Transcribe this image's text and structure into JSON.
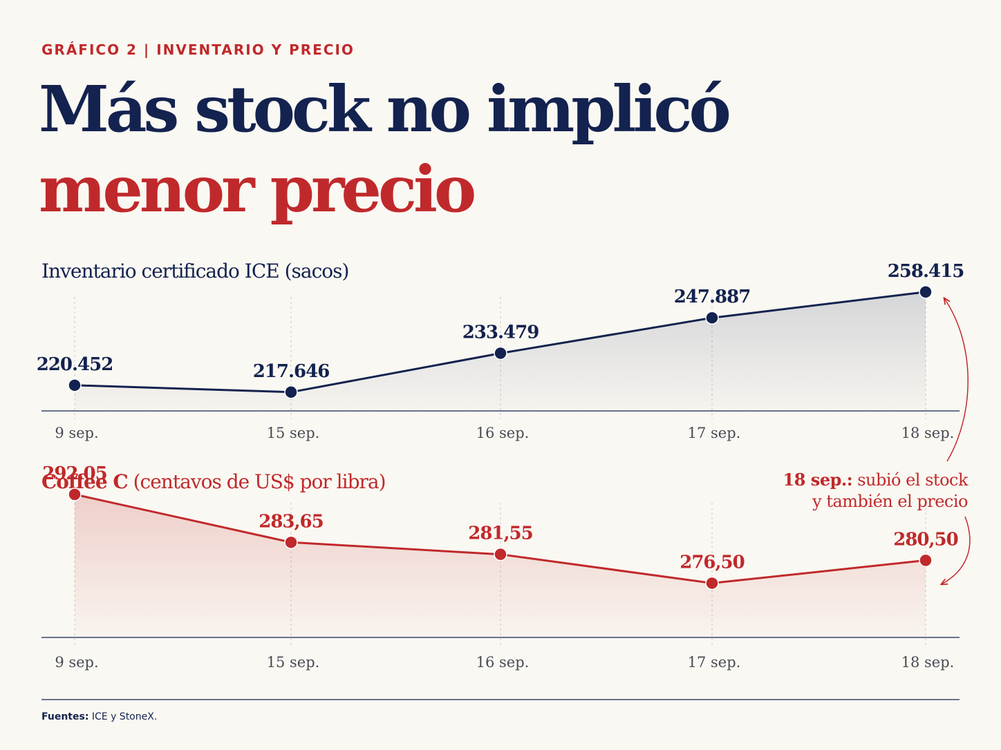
{
  "kicker": "GRÁFICO 2 | INVENTARIO Y PRECIO",
  "headline": {
    "line1": "Más stock no implicó",
    "line2": "menor precio"
  },
  "colors": {
    "navy": "#13224f",
    "red": "#c0292b",
    "background": "#faf8f2"
  },
  "chart_data": [
    {
      "type": "line",
      "title": "Inventario certificado ICE (sacos)",
      "categories": [
        "9 sep.",
        "15 sep.",
        "16 sep.",
        "17 sep.",
        "18 sep."
      ],
      "values": [
        220452,
        217646,
        233479,
        247887,
        258415
      ],
      "labels": [
        "220.452",
        "217.646",
        "233.479",
        "247.887",
        "258.415"
      ],
      "ylim": [
        210000,
        262000
      ],
      "area_fill": true,
      "grid": "vertical dashed"
    },
    {
      "type": "line",
      "title_bold": "Coffee C",
      "title_rest": "(centavos de US$ por libra)",
      "categories": [
        "9 sep.",
        "15 sep.",
        "16 sep.",
        "17 sep.",
        "18 sep."
      ],
      "values": [
        292.05,
        283.65,
        281.55,
        276.5,
        280.5
      ],
      "labels": [
        "292,05",
        "283,65",
        "281,55",
        "276,50",
        "280,50"
      ],
      "ylim": [
        267,
        293
      ],
      "area_fill": true,
      "grid": "vertical dashed"
    }
  ],
  "annotation": {
    "bold": "18 sep.:",
    "line1_rest": " subió el stock",
    "line2": "y también el precio"
  },
  "sources": {
    "label": "Fuentes:",
    "text": " ICE y StoneX."
  }
}
